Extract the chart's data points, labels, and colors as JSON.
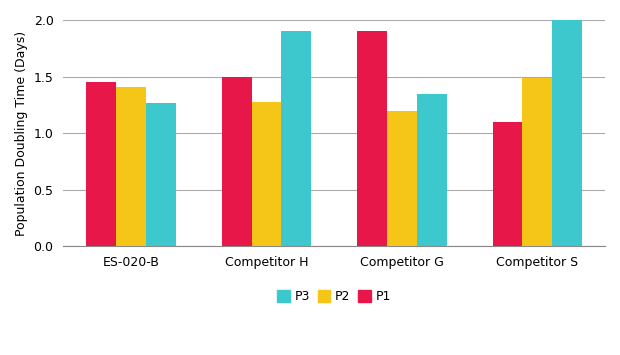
{
  "categories": [
    "ES-020-B",
    "Competitor H",
    "Competitor G",
    "Competitor S"
  ],
  "series": {
    "P1": [
      1.45,
      1.5,
      1.9,
      1.1
    ],
    "P2": [
      1.41,
      1.28,
      1.2,
      1.49
    ],
    "P3": [
      1.27,
      1.9,
      1.35,
      2.03
    ]
  },
  "colors": {
    "P1": "#E8174A",
    "P2": "#F5C518",
    "P3": "#3CC8CC"
  },
  "bar_order": [
    "P1",
    "P2",
    "P3"
  ],
  "ylabel": "Population Doubling Time (Days)",
  "ylim": [
    0.0,
    2.0
  ],
  "yticks": [
    0.0,
    0.5,
    1.0,
    1.5,
    2.0
  ],
  "bar_width": 0.22,
  "legend_order": [
    "P3",
    "P2",
    "P1"
  ],
  "background_color": "#FFFFFF",
  "grid_color": "#AAAAAA",
  "tick_fontsize": 9,
  "label_fontsize": 9,
  "legend_fontsize": 9
}
